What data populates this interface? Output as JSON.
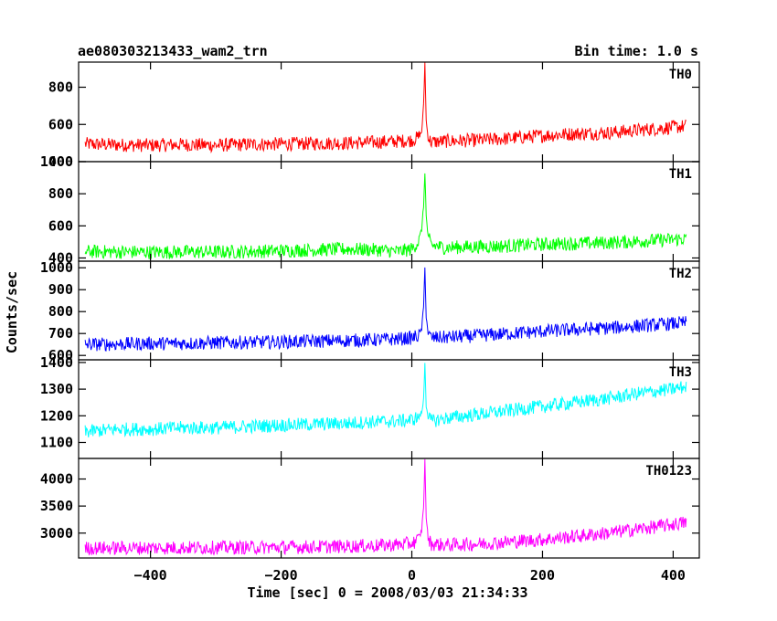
{
  "chart_data": {
    "type": "line",
    "title": "ae080303213433_wam2_trn",
    "subtitle": "Bin time: 1.0 s",
    "xlabel": "Time [sec] 0 = 2008/03/03 21:34:33",
    "ylabel": "Counts/sec",
    "xlim": [
      -510,
      440
    ],
    "xticks": [
      -400,
      -200,
      0,
      200,
      400
    ],
    "xtick_labels": [
      "−400",
      "−200",
      "0",
      "200",
      "400"
    ],
    "bin_time_s": 1.0,
    "panels": [
      {
        "label": "TH0",
        "color": "#ff0000",
        "ylim": [
          400,
          935
        ],
        "yticks": [
          400,
          600,
          800
        ],
        "ytick_labels": [
          "400",
          "600",
          "800"
        ],
        "series": {
          "x": [
            -500,
            -450,
            -400,
            -350,
            -300,
            -250,
            -200,
            -150,
            -100,
            -50,
            -20,
            0,
            10,
            15,
            18,
            20,
            22,
            25,
            30,
            50,
            100,
            150,
            200,
            250,
            300,
            350,
            400,
            420
          ],
          "y": [
            495,
            490,
            488,
            492,
            488,
            493,
            495,
            498,
            500,
            505,
            510,
            515,
            530,
            560,
            700,
            930,
            620,
            525,
            505,
            510,
            515,
            525,
            540,
            550,
            555,
            570,
            585,
            590
          ]
        }
      },
      {
        "label": "TH1",
        "color": "#00ff00",
        "ylim": [
          380,
          1000
        ],
        "yticks": [
          400,
          600,
          800,
          1000
        ],
        "ytick_labels": [
          "400",
          "600",
          "800",
          "1000"
        ],
        "series": {
          "x": [
            -500,
            -450,
            -400,
            -350,
            -300,
            -250,
            -200,
            -150,
            -100,
            -50,
            -20,
            0,
            10,
            15,
            18,
            20,
            22,
            25,
            30,
            50,
            100,
            150,
            200,
            250,
            300,
            350,
            400,
            420
          ],
          "y": [
            440,
            438,
            436,
            438,
            437,
            440,
            445,
            450,
            455,
            450,
            440,
            455,
            500,
            580,
            720,
            940,
            660,
            530,
            480,
            465,
            470,
            475,
            485,
            490,
            495,
            505,
            515,
            520
          ]
        }
      },
      {
        "label": "TH2",
        "color": "#0000ff",
        "ylim": [
          580,
          1030
        ],
        "yticks": [
          600,
          700,
          800,
          900,
          1000
        ],
        "ytick_labels": [
          "600",
          "700",
          "800",
          "900",
          "1000"
        ],
        "series": {
          "x": [
            -500,
            -450,
            -400,
            -350,
            -300,
            -250,
            -200,
            -150,
            -100,
            -50,
            -20,
            0,
            10,
            15,
            18,
            20,
            22,
            25,
            30,
            50,
            100,
            150,
            200,
            250,
            300,
            350,
            400,
            420
          ],
          "y": [
            650,
            652,
            655,
            655,
            658,
            660,
            662,
            665,
            668,
            672,
            675,
            680,
            690,
            720,
            820,
            1000,
            780,
            700,
            680,
            682,
            690,
            700,
            710,
            718,
            725,
            735,
            745,
            750
          ]
        }
      },
      {
        "label": "TH3",
        "color": "#00ffff",
        "ylim": [
          1040,
          1410
        ],
        "yticks": [
          1100,
          1200,
          1300,
          1400
        ],
        "ytick_labels": [
          "1100",
          "1200",
          "1300",
          "1400"
        ],
        "series": {
          "x": [
            -500,
            -450,
            -400,
            -350,
            -300,
            -250,
            -200,
            -150,
            -100,
            -50,
            -20,
            0,
            10,
            15,
            18,
            20,
            22,
            25,
            30,
            50,
            100,
            150,
            200,
            250,
            300,
            350,
            400,
            420
          ],
          "y": [
            1140,
            1150,
            1150,
            1155,
            1155,
            1160,
            1165,
            1168,
            1172,
            1178,
            1180,
            1185,
            1195,
            1210,
            1260,
            1400,
            1240,
            1195,
            1180,
            1190,
            1205,
            1220,
            1235,
            1250,
            1265,
            1285,
            1300,
            1310
          ]
        }
      },
      {
        "label": "TH0123",
        "color": "#ff00ff",
        "ylim": [
          2540,
          4380
        ],
        "yticks": [
          3000,
          3500,
          4000
        ],
        "ytick_labels": [
          "3000",
          "3500",
          "4000"
        ],
        "series": {
          "x": [
            -500,
            -450,
            -400,
            -350,
            -300,
            -250,
            -200,
            -150,
            -100,
            -50,
            -20,
            0,
            10,
            15,
            18,
            20,
            22,
            25,
            30,
            50,
            100,
            150,
            200,
            250,
            300,
            350,
            400,
            420
          ],
          "y": [
            2720,
            2725,
            2728,
            2730,
            2732,
            2735,
            2740,
            2745,
            2755,
            2770,
            2790,
            2810,
            2880,
            3050,
            3500,
            4330,
            3300,
            2900,
            2800,
            2780,
            2800,
            2840,
            2880,
            2940,
            3000,
            3080,
            3160,
            3200
          ]
        }
      }
    ]
  }
}
